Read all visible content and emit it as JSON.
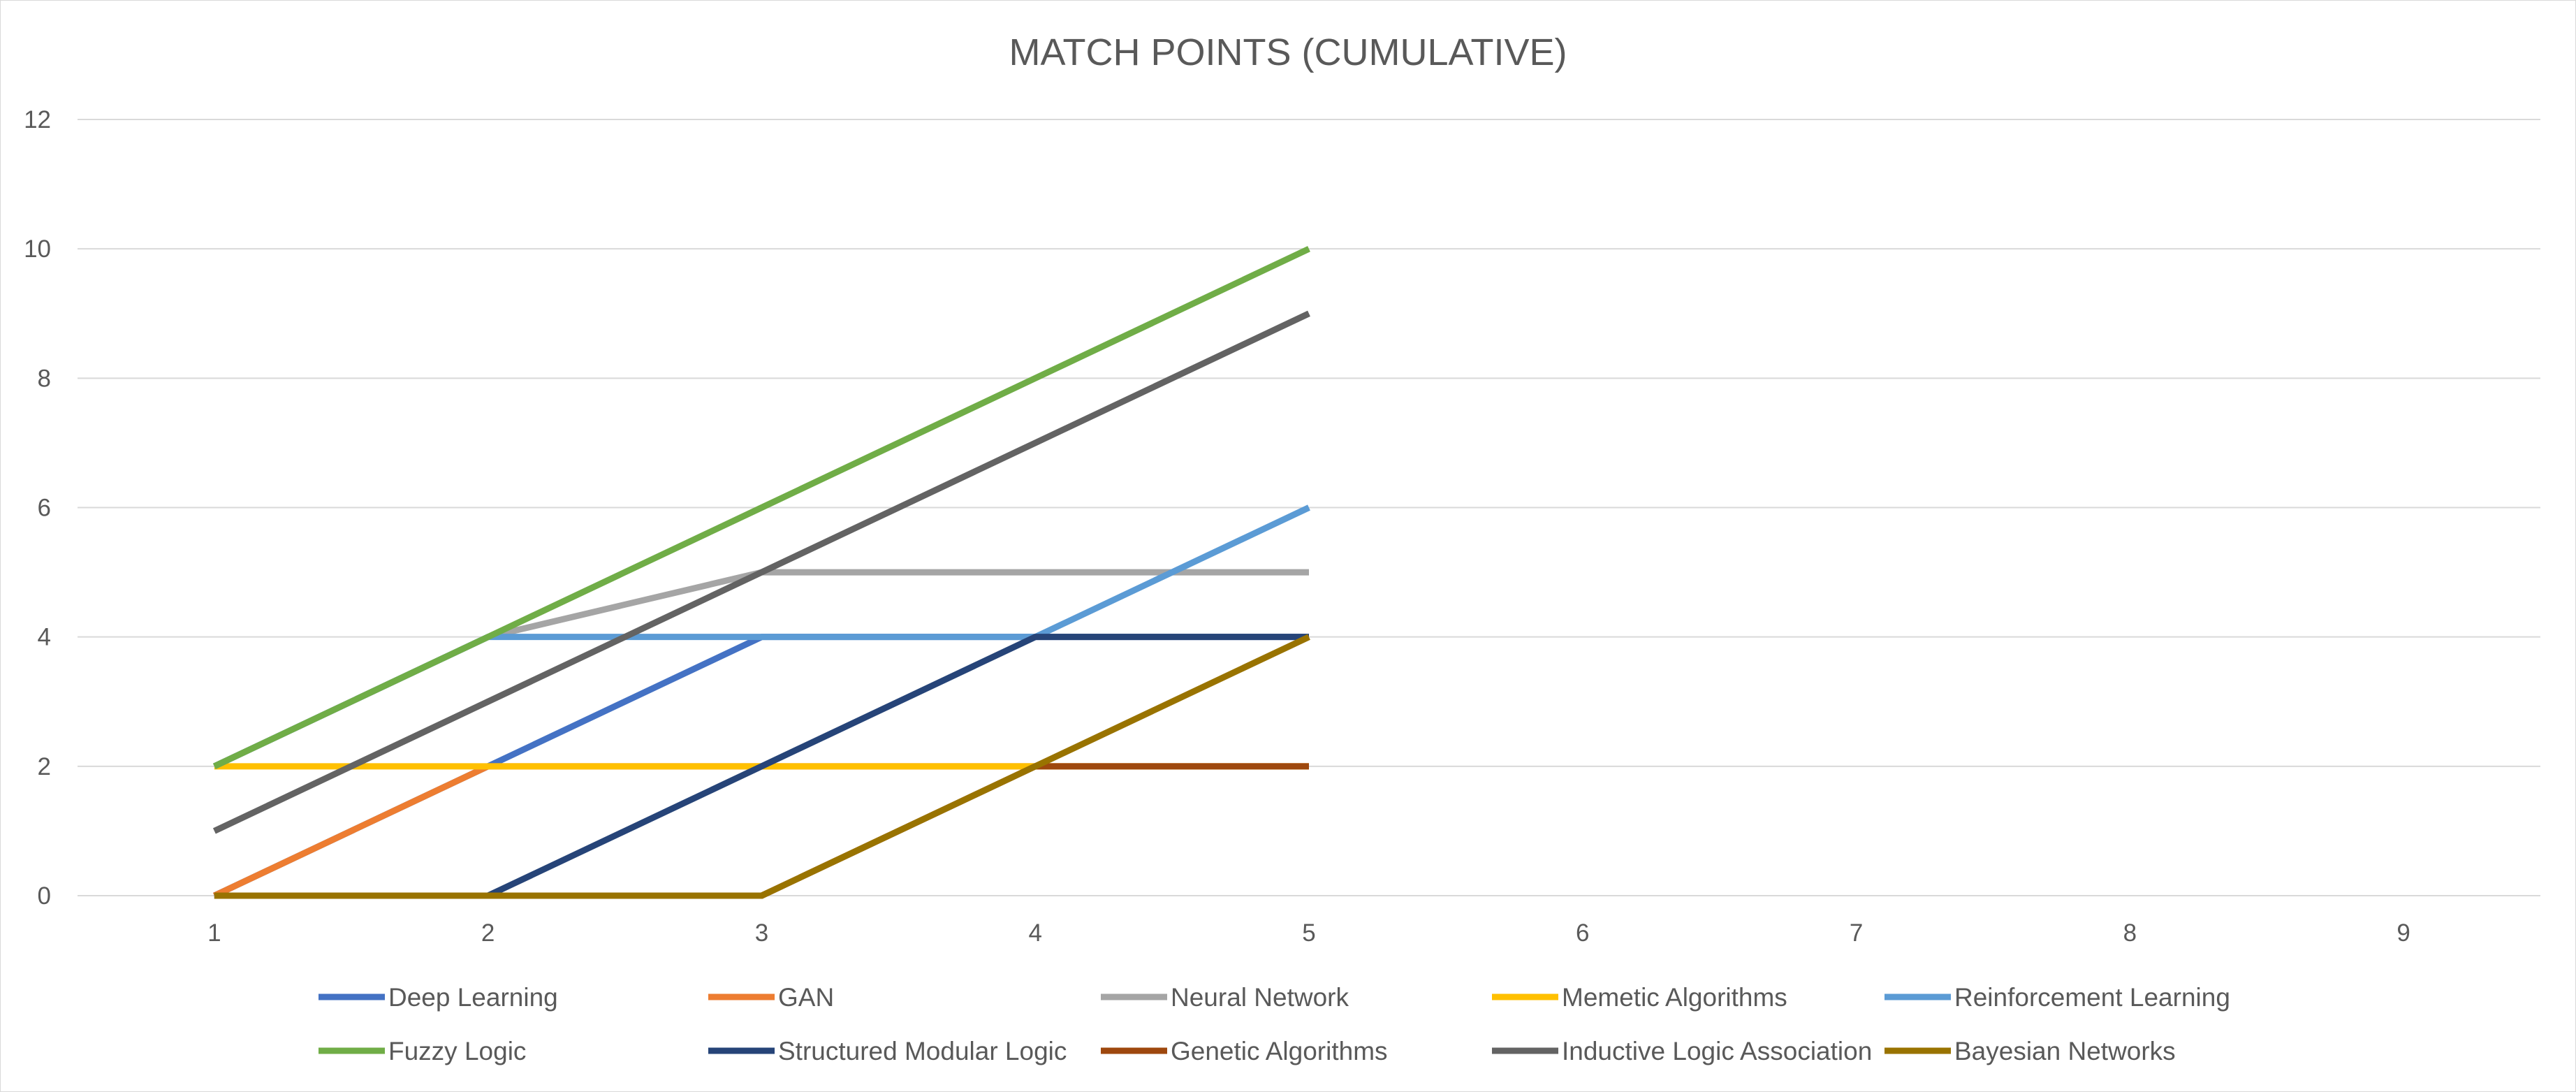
{
  "chart_data": {
    "type": "line",
    "title": "MATCH POINTS (CUMULATIVE)",
    "xlabel": "",
    "ylabel": "",
    "x": [
      1,
      2,
      3,
      4,
      5,
      6,
      7,
      8,
      9
    ],
    "x_tick_labels": [
      "1",
      "2",
      "3",
      "4",
      "5",
      "6",
      "7",
      "8",
      "9"
    ],
    "y_tick_labels": [
      "0",
      "2",
      "4",
      "6",
      "8",
      "10",
      "12"
    ],
    "ylim": [
      0,
      12
    ],
    "grid": true,
    "legend_position": "bottom",
    "series": [
      {
        "name": "Deep Learning",
        "color": "#4472c4",
        "values": [
          0,
          2,
          4,
          4,
          4,
          null,
          null,
          null,
          null
        ]
      },
      {
        "name": "GAN",
        "color": "#ed7d31",
        "values": [
          0,
          2,
          2,
          2,
          2,
          null,
          null,
          null,
          null
        ]
      },
      {
        "name": "Neural Network",
        "color": "#a5a5a5",
        "values": [
          2,
          4,
          5,
          5,
          5,
          null,
          null,
          null,
          null
        ]
      },
      {
        "name": "Memetic Algorithms",
        "color": "#ffc000",
        "values": [
          2,
          2,
          2,
          2,
          2,
          null,
          null,
          null,
          null
        ]
      },
      {
        "name": "Reinforcement Learning",
        "color": "#5b9bd5",
        "values": [
          2,
          4,
          4,
          4,
          6,
          null,
          null,
          null,
          null
        ]
      },
      {
        "name": "Fuzzy Logic",
        "color": "#70ad47",
        "values": [
          2,
          4,
          6,
          8,
          10,
          null,
          null,
          null,
          null
        ]
      },
      {
        "name": "Structured Modular Logic",
        "color": "#264478",
        "values": [
          0,
          0,
          2,
          4,
          4,
          null,
          null,
          null,
          null
        ]
      },
      {
        "name": "Genetic Algorithms",
        "color": "#9e480e",
        "values": [
          0,
          0,
          0,
          2,
          2,
          null,
          null,
          null,
          null
        ]
      },
      {
        "name": "Inductive Logic Association",
        "color": "#636363",
        "values": [
          1,
          3,
          5,
          7,
          9,
          null,
          null,
          null,
          null
        ]
      },
      {
        "name": "Bayesian Networks",
        "color": "#997300",
        "values": [
          0,
          0,
          0,
          2,
          4,
          null,
          null,
          null,
          null
        ]
      }
    ]
  }
}
